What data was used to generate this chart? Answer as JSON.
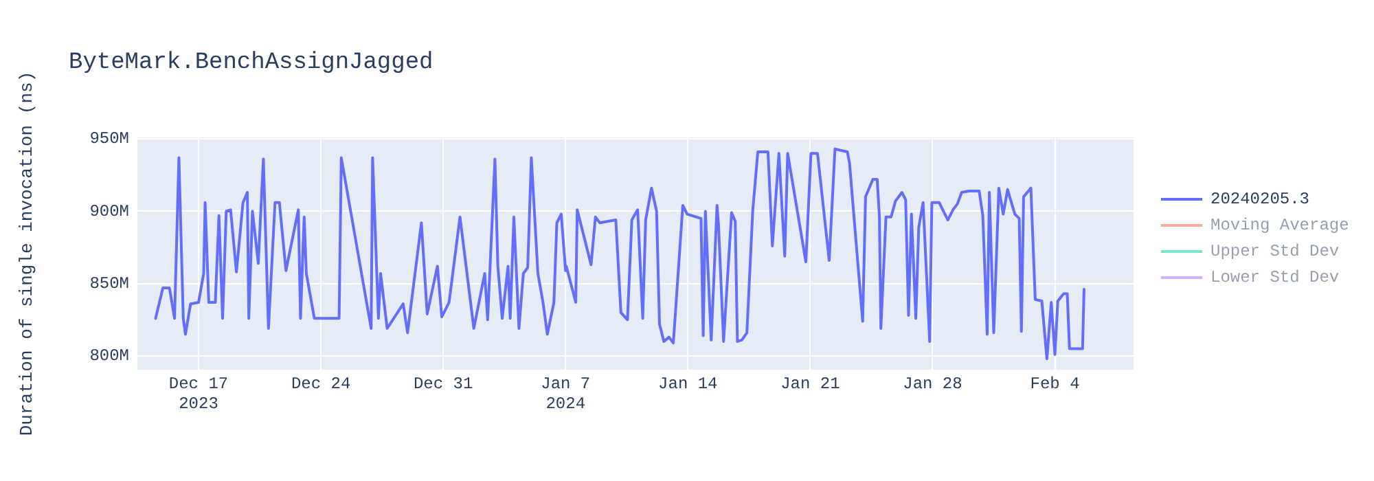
{
  "chart_data": {
    "type": "line",
    "title": "ByteMark.BenchAssignJagged",
    "ylabel": "Duration of single invocation (ns)",
    "xlim": [
      "2023-12-13T12:00",
      "2024-02-08T12:00"
    ],
    "xticks": [
      {
        "value": "2023-12-17T00:00",
        "label": "Dec 17\n2023"
      },
      {
        "value": "2023-12-24T00:00",
        "label": "Dec 24"
      },
      {
        "value": "2023-12-31T00:00",
        "label": "Dec 31"
      },
      {
        "value": "2024-01-07T00:00",
        "label": "Jan 7\n2024"
      },
      {
        "value": "2024-01-14T00:00",
        "label": "Jan 14"
      },
      {
        "value": "2024-01-21T00:00",
        "label": "Jan 21"
      },
      {
        "value": "2024-01-28T00:00",
        "label": "Jan 28"
      },
      {
        "value": "2024-02-04T00:00",
        "label": "Feb 4"
      }
    ],
    "ylim": [
      790.5,
      951
    ],
    "yticks": [
      {
        "value": 800,
        "label": "800M"
      },
      {
        "value": 850,
        "label": "850M"
      },
      {
        "value": 900,
        "label": "900M"
      },
      {
        "value": 950,
        "label": "950M"
      }
    ],
    "grid": true,
    "legend": "top right",
    "marker": "none",
    "line_style": "solid",
    "x": [
      "2023-12-14T13:00",
      "2023-12-14T23:00",
      "2023-12-15T08:00",
      "2023-12-15T15:00",
      "2023-12-15T21:00",
      "2023-12-16T03:00",
      "2023-12-16T06:00",
      "2023-12-16T13:00",
      "2023-12-17T00:00",
      "2023-12-17T07:00",
      "2023-12-17T09:00",
      "2023-12-17T14:00",
      "2023-12-17T23:00",
      "2023-12-18T04:00",
      "2023-12-18T09:00",
      "2023-12-18T14:00",
      "2023-12-18T20:00",
      "2023-12-19T04:00",
      "2023-12-19T13:00",
      "2023-12-19T19:00",
      "2023-12-19T21:00",
      "2023-12-20T02:00",
      "2023-12-20T10:00",
      "2023-12-20T17:00",
      "2023-12-21T00:00",
      "2023-12-21T09:00",
      "2023-12-21T15:00",
      "2023-12-22T00:00",
      "2023-12-22T17:00",
      "2023-12-22T20:00",
      "2023-12-23T01:00",
      "2023-12-23T04:00",
      "2023-12-23T15:00",
      "2023-12-25T01:00",
      "2023-12-25T04:00",
      "2023-12-26T21:00",
      "2023-12-26T23:00",
      "2023-12-27T07:00",
      "2023-12-27T10:00",
      "2023-12-27T19:00",
      "2023-12-28T17:00",
      "2023-12-28T23:00",
      "2023-12-29T18:00",
      "2023-12-30T02:00",
      "2023-12-30T16:00",
      "2023-12-30T22:00",
      "2023-12-31T08:00",
      "2023-12-31T23:00",
      "2024-01-01T18:00",
      "2024-01-02T09:00",
      "2024-01-02T13:00",
      "2024-01-02T23:00",
      "2024-01-03T03:00",
      "2024-01-03T09:00",
      "2024-01-03T17:00",
      "2024-01-03T20:00",
      "2024-01-04T01:00",
      "2024-01-04T08:00",
      "2024-01-04T14:00",
      "2024-01-04T20:00",
      "2024-01-05T01:00",
      "2024-01-05T10:00",
      "2024-01-05T17:00",
      "2024-01-05T23:00",
      "2024-01-06T08:00",
      "2024-01-06T12:00",
      "2024-01-06T18:00",
      "2024-01-07T00:00",
      "2024-01-07T01:00",
      "2024-01-07T14:00",
      "2024-01-07T16:00",
      "2024-01-08T11:00",
      "2024-01-08T17:00",
      "2024-01-08T23:00",
      "2024-01-09T21:00",
      "2024-01-10T04:00",
      "2024-01-10T13:00",
      "2024-01-10T19:00",
      "2024-01-11T03:00",
      "2024-01-11T10:00",
      "2024-01-11T14:00",
      "2024-01-11T22:00",
      "2024-01-12T05:00",
      "2024-01-12T09:00",
      "2024-01-12T15:00",
      "2024-01-12T22:00",
      "2024-01-13T04:00",
      "2024-01-13T17:00",
      "2024-01-13T23:00",
      "2024-01-14T18:00",
      "2024-01-14T21:00",
      "2024-01-15T00:00",
      "2024-01-15T08:00",
      "2024-01-15T16:00",
      "2024-01-15T18:00",
      "2024-01-16T01:00",
      "2024-01-16T12:00",
      "2024-01-16T17:00",
      "2024-01-16T20:00",
      "2024-01-17T02:00",
      "2024-01-17T09:00",
      "2024-01-17T17:00",
      "2024-01-18T00:00",
      "2024-01-18T14:00",
      "2024-01-18T20:00",
      "2024-01-19T05:00",
      "2024-01-19T13:00",
      "2024-01-19T17:00",
      "2024-01-20T18:00",
      "2024-01-21T01:00",
      "2024-01-21T10:00",
      "2024-01-22T02:00",
      "2024-01-22T10:00",
      "2024-01-23T03:00",
      "2024-01-23T06:00",
      "2024-01-24T00:00",
      "2024-01-24T04:00",
      "2024-01-24T14:00",
      "2024-01-24T20:00",
      "2024-01-24T23:00",
      "2024-01-25T01:00",
      "2024-01-25T08:00",
      "2024-01-25T15:00",
      "2024-01-25T21:00",
      "2024-01-26T06:00",
      "2024-01-26T11:00",
      "2024-01-26T15:00",
      "2024-01-26T19:00",
      "2024-01-27T01:00",
      "2024-01-27T05:00",
      "2024-01-27T11:00",
      "2024-01-27T20:00",
      "2024-01-27T23:00",
      "2024-01-28T09:00",
      "2024-01-28T21:00",
      "2024-01-29T04:00",
      "2024-01-29T10:00",
      "2024-01-29T16:00",
      "2024-01-30T02:00",
      "2024-01-30T16:00",
      "2024-01-30T21:00",
      "2024-01-31T03:00",
      "2024-01-31T06:00",
      "2024-01-31T12:00",
      "2024-01-31T19:00",
      "2024-02-01T01:00",
      "2024-02-01T07:00",
      "2024-02-01T17:00",
      "2024-02-01T23:00",
      "2024-02-02T02:00",
      "2024-02-02T05:00",
      "2024-02-02T15:00",
      "2024-02-02T21:00",
      "2024-02-03T06:00",
      "2024-02-03T13:00",
      "2024-02-03T19:00",
      "2024-02-04T00:00",
      "2024-02-04T04:00",
      "2024-02-04T12:00",
      "2024-02-04T17:00",
      "2024-02-04T20:00",
      "2024-02-05T14:00",
      "2024-02-05T16:00"
    ],
    "series": [
      {
        "name": "20240205.3",
        "color": "#636efa",
        "values": [
          826,
          847,
          847,
          826,
          937,
          826,
          815,
          836,
          837,
          857,
          906,
          837,
          837,
          897,
          826,
          900,
          901,
          858,
          906,
          913,
          826,
          900,
          864,
          936,
          819,
          906,
          906,
          859,
          901,
          826,
          896,
          857,
          826,
          826,
          937,
          819,
          937,
          826,
          857,
          819,
          836,
          816,
          892,
          829,
          862,
          827,
          837,
          896,
          819,
          857,
          825,
          936,
          862,
          826,
          862,
          826,
          896,
          819,
          857,
          861,
          937,
          857,
          837,
          815,
          837,
          892,
          898,
          859,
          862,
          837,
          901,
          863,
          896,
          892,
          894,
          830,
          825,
          894,
          901,
          826,
          894,
          916,
          900,
          822,
          810,
          813,
          809,
          904,
          898,
          895,
          814,
          900,
          811,
          904,
          891,
          810,
          899,
          893,
          810,
          811,
          816,
          900,
          941,
          941,
          876,
          940,
          869,
          940,
          865,
          940,
          940,
          866,
          943,
          941,
          933,
          824,
          910,
          922,
          922,
          896,
          819,
          896,
          896,
          907,
          913,
          908,
          828,
          898,
          826,
          889,
          906,
          810,
          906,
          906,
          894,
          901,
          905,
          913,
          914,
          914,
          897,
          815,
          913,
          816,
          916,
          898,
          915,
          898,
          895,
          817,
          910,
          916,
          839,
          838,
          798,
          837,
          801,
          838,
          843,
          843,
          805,
          805,
          846
        ]
      },
      {
        "name": "Moving Average",
        "color": "#ef553b",
        "values": [
          null,
          null,
          null,
          null,
          null,
          null,
          null,
          null,
          null,
          null,
          null,
          null,
          null,
          null,
          null,
          null,
          null,
          null,
          null,
          null,
          null,
          null,
          null,
          null,
          null,
          null,
          null,
          null,
          null,
          null,
          null,
          null,
          null,
          null,
          null,
          null,
          null,
          null,
          null,
          null,
          null,
          null,
          null,
          null,
          null,
          null,
          null,
          null,
          null,
          null,
          null,
          null,
          null,
          null,
          null,
          null,
          null,
          null,
          null,
          null,
          null,
          null,
          null,
          null,
          null,
          null,
          null,
          null,
          null,
          null,
          null,
          null,
          null,
          null,
          null,
          null,
          null,
          null,
          null,
          null,
          null,
          null,
          null,
          null,
          null,
          null,
          null,
          null,
          null,
          null,
          null,
          null,
          null,
          null,
          null,
          null,
          null,
          null,
          null,
          null,
          null,
          null,
          null,
          null,
          null,
          null,
          null,
          null,
          null,
          null,
          null,
          null,
          null,
          null,
          null,
          null,
          null,
          null,
          null,
          null,
          null,
          null,
          null,
          null,
          null,
          null,
          null,
          null,
          null,
          null,
          null,
          null,
          null,
          null,
          null,
          null,
          null,
          null,
          null,
          null,
          null,
          null,
          null,
          null,
          null,
          null,
          null,
          null,
          null,
          null,
          null,
          null,
          null,
          null,
          null,
          null,
          null,
          null,
          null,
          null,
          null,
          null,
          null
        ]
      },
      {
        "name": "Upper Std Dev",
        "color": "#00cc96",
        "values": [
          null,
          null,
          null,
          null,
          null,
          null,
          null,
          null,
          null,
          null,
          null,
          null,
          null,
          null,
          null,
          null,
          null,
          null,
          null,
          null,
          null,
          null,
          null,
          null,
          null,
          null,
          null,
          null,
          null,
          null,
          null,
          null,
          null,
          null,
          null,
          null,
          null,
          null,
          null,
          null,
          null,
          null,
          null,
          null,
          null,
          null,
          null,
          null,
          null,
          null,
          null,
          null,
          null,
          null,
          null,
          null,
          null,
          null,
          null,
          null,
          null,
          null,
          null,
          null,
          null,
          null,
          null,
          null,
          null,
          null,
          null,
          null,
          null,
          null,
          null,
          null,
          null,
          null,
          null,
          null,
          null,
          null,
          null,
          null,
          null,
          null,
          null,
          null,
          null,
          null,
          null,
          null,
          null,
          null,
          null,
          null,
          null,
          null,
          null,
          null,
          null,
          null,
          null,
          null,
          null,
          null,
          null,
          null,
          null,
          null,
          null,
          null,
          null,
          null,
          null,
          null,
          null,
          null,
          null,
          null,
          null,
          null,
          null,
          null,
          null,
          null,
          null,
          null,
          null,
          null,
          null,
          null,
          null,
          null,
          null,
          null,
          null,
          null,
          null,
          null,
          null,
          null,
          null,
          null,
          null,
          null,
          null,
          null,
          null,
          null,
          null,
          null,
          null,
          null,
          null,
          null,
          null,
          null,
          null,
          null,
          null,
          null,
          null
        ]
      },
      {
        "name": "Lower Std Dev",
        "color": "#ab63fa",
        "values": [
          null,
          null,
          null,
          null,
          null,
          null,
          null,
          null,
          null,
          null,
          null,
          null,
          null,
          null,
          null,
          null,
          null,
          null,
          null,
          null,
          null,
          null,
          null,
          null,
          null,
          null,
          null,
          null,
          null,
          null,
          null,
          null,
          null,
          null,
          null,
          null,
          null,
          null,
          null,
          null,
          null,
          null,
          null,
          null,
          null,
          null,
          null,
          null,
          null,
          null,
          null,
          null,
          null,
          null,
          null,
          null,
          null,
          null,
          null,
          null,
          null,
          null,
          null,
          null,
          null,
          null,
          null,
          null,
          null,
          null,
          null,
          null,
          null,
          null,
          null,
          null,
          null,
          null,
          null,
          null,
          null,
          null,
          null,
          null,
          null,
          null,
          null,
          null,
          null,
          null,
          null,
          null,
          null,
          null,
          null,
          null,
          null,
          null,
          null,
          null,
          null,
          null,
          null,
          null,
          null,
          null,
          null,
          null,
          null,
          null,
          null,
          null,
          null,
          null,
          null,
          null,
          null,
          null,
          null,
          null,
          null,
          null,
          null,
          null,
          null,
          null,
          null,
          null,
          null,
          null,
          null,
          null,
          null,
          null,
          null,
          null,
          null,
          null,
          null,
          null,
          null,
          null,
          null,
          null,
          null,
          null,
          null,
          null,
          null,
          null,
          null,
          null,
          null,
          null,
          null,
          null,
          null,
          null,
          null,
          null,
          null,
          null,
          null
        ]
      }
    ]
  }
}
